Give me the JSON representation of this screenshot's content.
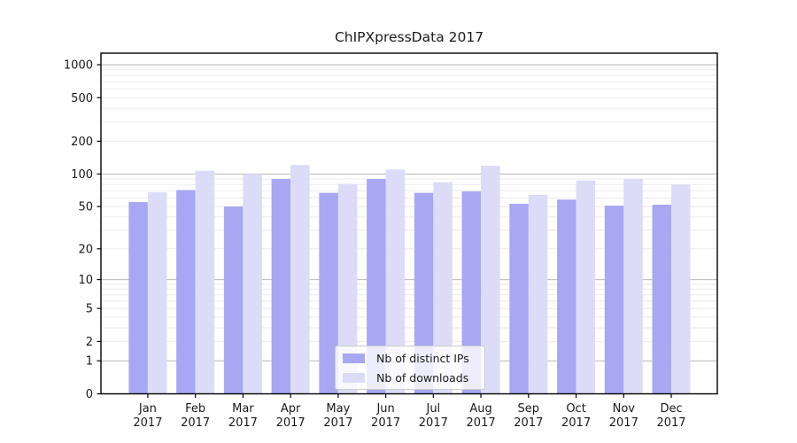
{
  "chart_data": {
    "type": "bar",
    "title": "ChIPXpressData 2017",
    "categories": [
      "Jan",
      "Feb",
      "Mar",
      "Apr",
      "May",
      "Jun",
      "Jul",
      "Aug",
      "Sep",
      "Oct",
      "Nov",
      "Dec"
    ],
    "category_year": "2017",
    "series": [
      {
        "name": "Nb of distinct IPs",
        "color": "#a7a7f2",
        "values": [
          55,
          71,
          50,
          90,
          67,
          90,
          67,
          69,
          53,
          58,
          51,
          52
        ]
      },
      {
        "name": "Nb of downloads",
        "color": "#dcdcf8",
        "values": [
          68,
          107,
          100,
          121,
          81,
          110,
          84,
          119,
          64,
          87,
          90,
          80
        ]
      }
    ],
    "y_axis": {
      "scale": "log10(value+1)",
      "ticks": [
        1000,
        500,
        200,
        100,
        50,
        20,
        10,
        5,
        2,
        1,
        0
      ],
      "major_gridlines": [
        1,
        10,
        100,
        1000
      ],
      "minor_gridlines": [
        2,
        3,
        4,
        5,
        6,
        7,
        8,
        9,
        20,
        30,
        40,
        50,
        60,
        70,
        80,
        90,
        200,
        300,
        400,
        500,
        600,
        700,
        800,
        900
      ],
      "ylim_top_value": 1200
    },
    "xlabel": "",
    "ylabel": "",
    "grid": true,
    "legend": {
      "position": "bottom-center",
      "entries": [
        "Nb of distinct IPs",
        "Nb of downloads"
      ]
    },
    "colors": {
      "background": "#ffffff",
      "major_grid": "#b9b9b9",
      "minor_grid": "#ebebeb",
      "axis": "#000000",
      "text": "#1a1a1a",
      "legend_border": "#cccccc"
    }
  }
}
